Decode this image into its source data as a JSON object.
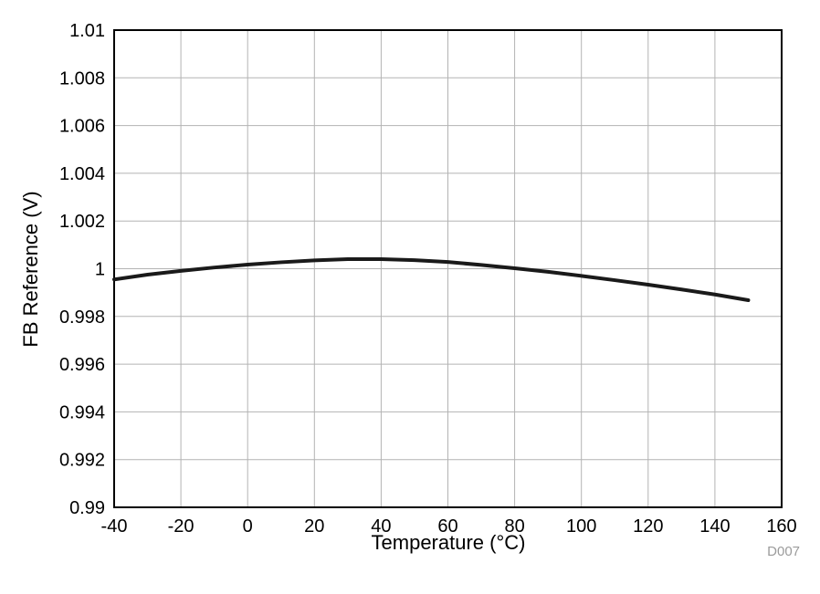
{
  "chart_data": {
    "type": "line",
    "title": "",
    "xlabel": "Temperature (°C)",
    "ylabel": "FB Reference (V)",
    "figure_id": "D007",
    "xlim": [
      -40,
      160
    ],
    "ylim": [
      0.99,
      1.01
    ],
    "x_ticks": [
      -40,
      -20,
      0,
      20,
      40,
      60,
      80,
      100,
      120,
      140,
      160
    ],
    "x_tick_labels": [
      "-40",
      "-20",
      "0",
      "20",
      "40",
      "60",
      "80",
      "100",
      "120",
      "140",
      "160"
    ],
    "y_ticks": [
      0.99,
      0.992,
      0.994,
      0.996,
      0.998,
      1.0,
      1.002,
      1.004,
      1.006,
      1.008,
      1.01
    ],
    "y_tick_labels": [
      "0.99",
      "0.992",
      "0.994",
      "0.996",
      "0.998",
      "1",
      "1.002",
      "1.004",
      "1.006",
      "1.008",
      "1.01"
    ],
    "grid": true,
    "legend": "none",
    "colors": {
      "curve": "#1a1a1a",
      "grid": "#b3b3b3",
      "axis_frame": "#000000",
      "tick_text": "#000000",
      "watermark": "#9b9b9b"
    },
    "series": [
      {
        "name": "FB Reference",
        "x": [
          -40,
          -30,
          -20,
          -10,
          0,
          10,
          20,
          30,
          40,
          50,
          60,
          70,
          80,
          90,
          100,
          110,
          120,
          130,
          140,
          150
        ],
        "y": [
          0.99955,
          0.99975,
          0.99991,
          1.00005,
          1.00017,
          1.00027,
          1.00035,
          1.0004,
          1.0004,
          1.00036,
          1.00028,
          1.00016,
          1.00002,
          0.99987,
          0.9997,
          0.99952,
          0.99933,
          0.99913,
          0.99892,
          0.99868
        ]
      }
    ]
  }
}
